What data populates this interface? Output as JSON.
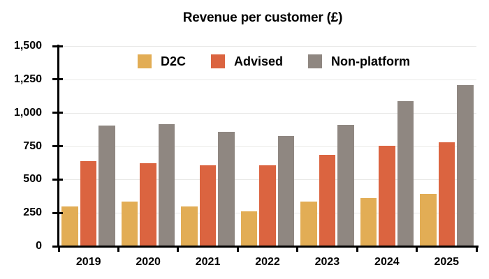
{
  "title": "Revenue per customer (£)",
  "chart_data": {
    "type": "bar",
    "title": "Revenue per customer (£)",
    "categories": [
      "2019",
      "2020",
      "2021",
      "2022",
      "2023",
      "2024",
      "2025"
    ],
    "series": [
      {
        "name": "D2C",
        "color": "#E2AD55",
        "values": [
          300,
          335,
          300,
          260,
          335,
          360,
          390
        ]
      },
      {
        "name": "Advised",
        "color": "#DB6440",
        "values": [
          640,
          620,
          605,
          605,
          685,
          755,
          780
        ]
      },
      {
        "name": "Non-platform",
        "color": "#8F8781",
        "values": [
          905,
          915,
          855,
          825,
          910,
          1085,
          1205
        ]
      }
    ],
    "xlabel": "",
    "ylabel": "",
    "ylim": [
      0,
      1500
    ],
    "ytick_step": 250,
    "ytick_labels": [
      "0",
      "250",
      "500",
      "750",
      "1,000",
      "1,250",
      "1,500"
    ],
    "grid": true,
    "legend_position": "top-inside-horizontal",
    "axis_color": "#000000",
    "gridline_color": "#E9E9E7",
    "background_color": "#FFFFFF"
  }
}
